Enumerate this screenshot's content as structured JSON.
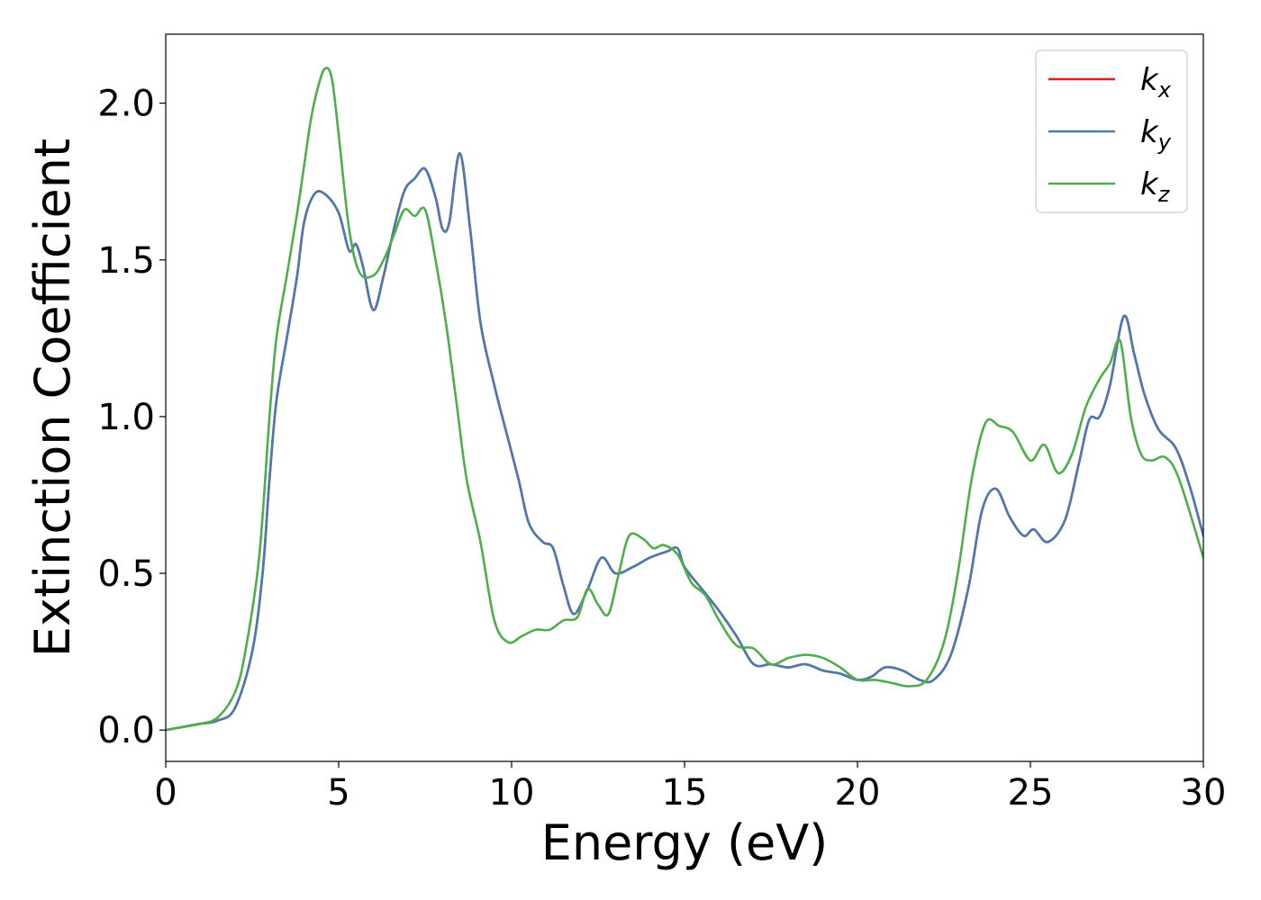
{
  "chart_data": {
    "type": "line",
    "title": "",
    "xlabel": "Energy (eV)",
    "ylabel": "Extinction Coefficient",
    "xlim": [
      0,
      30
    ],
    "ylim": [
      -0.1,
      2.22
    ],
    "xticks": [
      0,
      5,
      10,
      15,
      20,
      25,
      30
    ],
    "xtick_labels": [
      "0",
      "5",
      "10",
      "15",
      "20",
      "25",
      "30"
    ],
    "yticks": [
      0.0,
      0.5,
      1.0,
      1.5,
      2.0
    ],
    "ytick_labels": [
      "0.0",
      "0.5",
      "1.0",
      "1.5",
      "2.0"
    ],
    "grid": false,
    "legend_position": "top-right",
    "series": [
      {
        "name": "k_x",
        "legend_main": "k",
        "legend_sub": "x",
        "color": "#e41a1c",
        "points": [
          [
            0,
            0
          ],
          [
            0.5,
            0.01
          ],
          [
            1.0,
            0.02
          ],
          [
            1.5,
            0.03
          ],
          [
            2.0,
            0.07
          ],
          [
            2.5,
            0.25
          ],
          [
            2.8,
            0.5
          ],
          [
            3.0,
            0.8
          ],
          [
            3.2,
            1.05
          ],
          [
            3.5,
            1.25
          ],
          [
            3.8,
            1.45
          ],
          [
            4.0,
            1.62
          ],
          [
            4.3,
            1.71
          ],
          [
            4.6,
            1.71
          ],
          [
            5.0,
            1.65
          ],
          [
            5.3,
            1.53
          ],
          [
            5.5,
            1.55
          ],
          [
            5.7,
            1.48
          ],
          [
            6.0,
            1.34
          ],
          [
            6.3,
            1.45
          ],
          [
            6.6,
            1.6
          ],
          [
            6.9,
            1.72
          ],
          [
            7.2,
            1.76
          ],
          [
            7.5,
            1.79
          ],
          [
            7.8,
            1.7
          ],
          [
            8.0,
            1.6
          ],
          [
            8.2,
            1.62
          ],
          [
            8.5,
            1.84
          ],
          [
            8.8,
            1.6
          ],
          [
            9.1,
            1.3
          ],
          [
            9.5,
            1.1
          ],
          [
            9.8,
            0.97
          ],
          [
            10.2,
            0.8
          ],
          [
            10.5,
            0.66
          ],
          [
            10.9,
            0.6
          ],
          [
            11.2,
            0.58
          ],
          [
            11.5,
            0.46
          ],
          [
            11.8,
            0.37
          ],
          [
            12.2,
            0.45
          ],
          [
            12.6,
            0.55
          ],
          [
            13.0,
            0.5
          ],
          [
            13.5,
            0.52
          ],
          [
            14.0,
            0.55
          ],
          [
            14.5,
            0.57
          ],
          [
            14.8,
            0.58
          ],
          [
            15.0,
            0.52
          ],
          [
            15.5,
            0.45
          ],
          [
            16.0,
            0.38
          ],
          [
            16.5,
            0.3
          ],
          [
            17.0,
            0.21
          ],
          [
            17.5,
            0.21
          ],
          [
            18.0,
            0.2
          ],
          [
            18.5,
            0.21
          ],
          [
            19.0,
            0.19
          ],
          [
            19.5,
            0.18
          ],
          [
            20.0,
            0.16
          ],
          [
            20.4,
            0.17
          ],
          [
            20.8,
            0.2
          ],
          [
            21.3,
            0.19
          ],
          [
            21.8,
            0.16
          ],
          [
            22.2,
            0.16
          ],
          [
            22.7,
            0.24
          ],
          [
            23.2,
            0.45
          ],
          [
            23.6,
            0.7
          ],
          [
            24.0,
            0.77
          ],
          [
            24.4,
            0.68
          ],
          [
            24.8,
            0.62
          ],
          [
            25.1,
            0.64
          ],
          [
            25.5,
            0.6
          ],
          [
            26.0,
            0.67
          ],
          [
            26.4,
            0.85
          ],
          [
            26.7,
            0.99
          ],
          [
            27.0,
            1.0
          ],
          [
            27.3,
            1.1
          ],
          [
            27.7,
            1.32
          ],
          [
            28.0,
            1.2
          ],
          [
            28.3,
            1.07
          ],
          [
            28.7,
            0.96
          ],
          [
            29.2,
            0.9
          ],
          [
            29.6,
            0.78
          ],
          [
            30.0,
            0.62
          ]
        ]
      },
      {
        "name": "k_y",
        "legend_main": "k",
        "legend_sub": "y",
        "color": "#4a7ab0",
        "points": [
          [
            0,
            0
          ],
          [
            0.5,
            0.01
          ],
          [
            1.0,
            0.02
          ],
          [
            1.5,
            0.03
          ],
          [
            2.0,
            0.07
          ],
          [
            2.5,
            0.25
          ],
          [
            2.8,
            0.5
          ],
          [
            3.0,
            0.8
          ],
          [
            3.2,
            1.05
          ],
          [
            3.5,
            1.25
          ],
          [
            3.8,
            1.45
          ],
          [
            4.0,
            1.62
          ],
          [
            4.3,
            1.71
          ],
          [
            4.6,
            1.71
          ],
          [
            5.0,
            1.65
          ],
          [
            5.3,
            1.53
          ],
          [
            5.5,
            1.55
          ],
          [
            5.7,
            1.48
          ],
          [
            6.0,
            1.34
          ],
          [
            6.3,
            1.45
          ],
          [
            6.6,
            1.6
          ],
          [
            6.9,
            1.72
          ],
          [
            7.2,
            1.76
          ],
          [
            7.5,
            1.79
          ],
          [
            7.8,
            1.7
          ],
          [
            8.0,
            1.6
          ],
          [
            8.2,
            1.62
          ],
          [
            8.5,
            1.84
          ],
          [
            8.8,
            1.6
          ],
          [
            9.1,
            1.3
          ],
          [
            9.5,
            1.1
          ],
          [
            9.8,
            0.97
          ],
          [
            10.2,
            0.8
          ],
          [
            10.5,
            0.66
          ],
          [
            10.9,
            0.6
          ],
          [
            11.2,
            0.58
          ],
          [
            11.5,
            0.46
          ],
          [
            11.8,
            0.37
          ],
          [
            12.2,
            0.45
          ],
          [
            12.6,
            0.55
          ],
          [
            13.0,
            0.5
          ],
          [
            13.5,
            0.52
          ],
          [
            14.0,
            0.55
          ],
          [
            14.5,
            0.57
          ],
          [
            14.8,
            0.58
          ],
          [
            15.0,
            0.52
          ],
          [
            15.5,
            0.45
          ],
          [
            16.0,
            0.38
          ],
          [
            16.5,
            0.3
          ],
          [
            17.0,
            0.21
          ],
          [
            17.5,
            0.21
          ],
          [
            18.0,
            0.2
          ],
          [
            18.5,
            0.21
          ],
          [
            19.0,
            0.19
          ],
          [
            19.5,
            0.18
          ],
          [
            20.0,
            0.16
          ],
          [
            20.4,
            0.17
          ],
          [
            20.8,
            0.2
          ],
          [
            21.3,
            0.19
          ],
          [
            21.8,
            0.16
          ],
          [
            22.2,
            0.16
          ],
          [
            22.7,
            0.24
          ],
          [
            23.2,
            0.45
          ],
          [
            23.6,
            0.7
          ],
          [
            24.0,
            0.77
          ],
          [
            24.4,
            0.68
          ],
          [
            24.8,
            0.62
          ],
          [
            25.1,
            0.64
          ],
          [
            25.5,
            0.6
          ],
          [
            26.0,
            0.67
          ],
          [
            26.4,
            0.85
          ],
          [
            26.7,
            0.99
          ],
          [
            27.0,
            1.0
          ],
          [
            27.3,
            1.1
          ],
          [
            27.7,
            1.32
          ],
          [
            28.0,
            1.2
          ],
          [
            28.3,
            1.07
          ],
          [
            28.7,
            0.96
          ],
          [
            29.2,
            0.9
          ],
          [
            29.6,
            0.78
          ],
          [
            30.0,
            0.62
          ]
        ]
      },
      {
        "name": "k_z",
        "legend_main": "k",
        "legend_sub": "z",
        "color": "#4daf4a",
        "points": [
          [
            0,
            0
          ],
          [
            0.5,
            0.01
          ],
          [
            1.0,
            0.02
          ],
          [
            1.5,
            0.04
          ],
          [
            2.0,
            0.12
          ],
          [
            2.3,
            0.25
          ],
          [
            2.7,
            0.55
          ],
          [
            3.0,
            1.0
          ],
          [
            3.2,
            1.25
          ],
          [
            3.5,
            1.45
          ],
          [
            3.8,
            1.65
          ],
          [
            4.0,
            1.8
          ],
          [
            4.2,
            1.95
          ],
          [
            4.4,
            2.05
          ],
          [
            4.6,
            2.11
          ],
          [
            4.8,
            2.08
          ],
          [
            5.0,
            1.9
          ],
          [
            5.3,
            1.6
          ],
          [
            5.6,
            1.46
          ],
          [
            6.0,
            1.45
          ],
          [
            6.3,
            1.5
          ],
          [
            6.6,
            1.58
          ],
          [
            6.9,
            1.66
          ],
          [
            7.2,
            1.64
          ],
          [
            7.5,
            1.66
          ],
          [
            7.8,
            1.5
          ],
          [
            8.1,
            1.3
          ],
          [
            8.4,
            1.05
          ],
          [
            8.7,
            0.8
          ],
          [
            9.1,
            0.6
          ],
          [
            9.5,
            0.35
          ],
          [
            9.9,
            0.28
          ],
          [
            10.3,
            0.3
          ],
          [
            10.7,
            0.32
          ],
          [
            11.1,
            0.32
          ],
          [
            11.5,
            0.35
          ],
          [
            11.9,
            0.36
          ],
          [
            12.2,
            0.45
          ],
          [
            12.5,
            0.4
          ],
          [
            12.8,
            0.37
          ],
          [
            13.1,
            0.5
          ],
          [
            13.4,
            0.62
          ],
          [
            13.8,
            0.61
          ],
          [
            14.1,
            0.58
          ],
          [
            14.4,
            0.59
          ],
          [
            14.8,
            0.56
          ],
          [
            15.2,
            0.47
          ],
          [
            15.6,
            0.43
          ],
          [
            16.0,
            0.35
          ],
          [
            16.5,
            0.27
          ],
          [
            17.0,
            0.26
          ],
          [
            17.5,
            0.21
          ],
          [
            18.0,
            0.23
          ],
          [
            18.5,
            0.24
          ],
          [
            19.0,
            0.23
          ],
          [
            19.5,
            0.2
          ],
          [
            20.0,
            0.16
          ],
          [
            20.5,
            0.16
          ],
          [
            21.0,
            0.15
          ],
          [
            21.5,
            0.14
          ],
          [
            22.0,
            0.16
          ],
          [
            22.5,
            0.28
          ],
          [
            22.9,
            0.5
          ],
          [
            23.3,
            0.8
          ],
          [
            23.7,
            0.98
          ],
          [
            24.1,
            0.97
          ],
          [
            24.5,
            0.95
          ],
          [
            25.0,
            0.86
          ],
          [
            25.4,
            0.91
          ],
          [
            25.8,
            0.82
          ],
          [
            26.2,
            0.88
          ],
          [
            26.6,
            1.03
          ],
          [
            27.0,
            1.12
          ],
          [
            27.3,
            1.17
          ],
          [
            27.6,
            1.24
          ],
          [
            27.9,
            1.0
          ],
          [
            28.2,
            0.88
          ],
          [
            28.5,
            0.86
          ],
          [
            28.9,
            0.87
          ],
          [
            29.3,
            0.8
          ],
          [
            30.0,
            0.55
          ]
        ]
      }
    ]
  }
}
